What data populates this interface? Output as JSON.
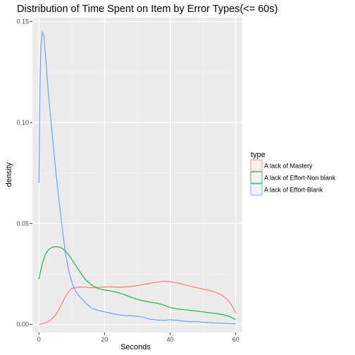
{
  "chart_data": {
    "type": "line",
    "title": "Distribution of Time Spent on Item by Error Types(<= 60s)",
    "xlabel": "Seconds",
    "ylabel": "density",
    "xlim": [
      -2,
      62
    ],
    "ylim": [
      -0.004,
      0.152
    ],
    "x_ticks": [
      0,
      20,
      40,
      60
    ],
    "x_tick_labels": [
      "0",
      "20",
      "40",
      "60"
    ],
    "y_ticks": [
      0,
      0.05,
      0.1,
      0.15
    ],
    "y_tick_labels": [
      "0.00",
      "0.05",
      "0.10",
      "0.15"
    ],
    "x_minor_ticks": [
      10,
      30,
      50
    ],
    "y_minor_ticks": [
      0.025,
      0.075,
      0.125
    ],
    "grid": true,
    "panel_background": "#ebebeb",
    "legend": {
      "title": "type",
      "position": "right"
    },
    "series": [
      {
        "name": "A lack of Mastery",
        "color": "#F8766D",
        "x": [
          0,
          1,
          2,
          3,
          4,
          5,
          6,
          7,
          8,
          9,
          10,
          12,
          14,
          16,
          18,
          20,
          22,
          24,
          26,
          28,
          30,
          32,
          34,
          36,
          38,
          40,
          42,
          44,
          46,
          48,
          50,
          52,
          54,
          56,
          57,
          58,
          59,
          60
        ],
        "y": [
          0.0,
          0.0003,
          0.0008,
          0.0015,
          0.0028,
          0.0045,
          0.007,
          0.0102,
          0.0135,
          0.0162,
          0.0178,
          0.0185,
          0.0184,
          0.0182,
          0.0183,
          0.0185,
          0.0186,
          0.0184,
          0.0185,
          0.0188,
          0.0192,
          0.0198,
          0.0204,
          0.021,
          0.0214,
          0.0212,
          0.0206,
          0.0198,
          0.019,
          0.0182,
          0.0175,
          0.0168,
          0.0158,
          0.0143,
          0.013,
          0.0112,
          0.0088,
          0.0055
        ]
      },
      {
        "name": "A lack of Effort-Non blank",
        "color": "#00BA38",
        "x": [
          0,
          0.5,
          1,
          2,
          3,
          4,
          5,
          6,
          7,
          8,
          9,
          10,
          12,
          14,
          16,
          18,
          20,
          22,
          24,
          26,
          28,
          30,
          32,
          34,
          36,
          38,
          40,
          42,
          44,
          46,
          48,
          50,
          52,
          54,
          56,
          58,
          59,
          60
        ],
        "y": [
          0.0225,
          0.0262,
          0.03,
          0.0348,
          0.0372,
          0.0382,
          0.0385,
          0.0384,
          0.0378,
          0.0365,
          0.0346,
          0.0322,
          0.0272,
          0.0225,
          0.0195,
          0.0178,
          0.017,
          0.0165,
          0.0158,
          0.0148,
          0.0135,
          0.0124,
          0.0116,
          0.011,
          0.0105,
          0.0096,
          0.0084,
          0.0077,
          0.0073,
          0.007,
          0.0066,
          0.0062,
          0.0058,
          0.0054,
          0.0048,
          0.004,
          0.0032,
          0.0025
        ]
      },
      {
        "name": "A lack of Effort-Blank",
        "color": "#619CFF",
        "x": [
          0,
          0.3,
          0.6,
          1,
          1.5,
          2,
          2.5,
          3,
          4,
          5,
          6,
          7,
          8,
          9,
          10,
          11,
          12,
          14,
          16,
          18,
          20,
          22,
          24,
          26,
          28,
          30,
          32,
          34,
          36,
          38,
          40,
          42,
          44,
          46,
          48,
          50,
          52,
          54,
          56,
          58,
          60
        ],
        "y": [
          0.07,
          0.118,
          0.138,
          0.145,
          0.143,
          0.133,
          0.122,
          0.112,
          0.095,
          0.078,
          0.063,
          0.049,
          0.036,
          0.027,
          0.021,
          0.017,
          0.0145,
          0.011,
          0.008,
          0.007,
          0.0062,
          0.0055,
          0.0048,
          0.0044,
          0.0043,
          0.004,
          0.0035,
          0.0025,
          0.0022,
          0.002,
          0.0023,
          0.002,
          0.0016,
          0.0014,
          0.0014,
          0.0011,
          0.0009,
          0.0007,
          0.0006,
          0.0004,
          0.0002
        ]
      }
    ]
  }
}
